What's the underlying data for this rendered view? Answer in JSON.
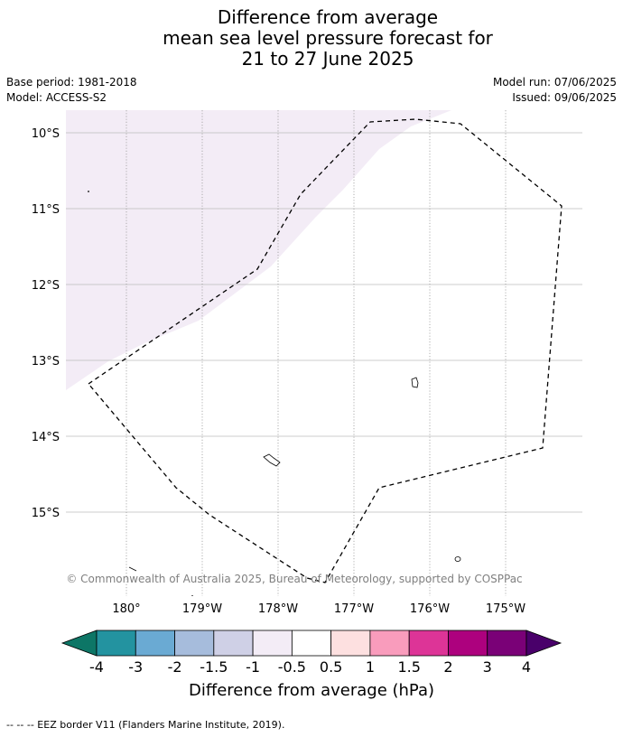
{
  "title": {
    "line1": "Difference from average",
    "line2": "mean sea level pressure forecast for",
    "line3": "21 to 27 June 2025"
  },
  "meta": {
    "base_period": "Base period: 1981-2018",
    "model": "Model: ACCESS-S2",
    "model_run": "Model run: 07/06/2025",
    "issued": "Issued: 09/06/2025"
  },
  "map": {
    "lat_labels": [
      "10°S",
      "11°S",
      "12°S",
      "13°S",
      "14°S",
      "15°S"
    ],
    "lon_labels": [
      "180°",
      "179°W",
      "178°W",
      "177°W",
      "176°W",
      "175°W"
    ],
    "copyright": "© Commonwealth of Australia 2025, Bureau of Meteorology, supported by COSPPac",
    "anomaly_region_class": "-1 to -0.5",
    "anomaly_color": "#f3ecf6",
    "eez_style": "dashed black line"
  },
  "colorbar": {
    "tick_labels": [
      "-4",
      "-3",
      "-2",
      "-1.5",
      "-1",
      "-0.5",
      "0.5",
      "1",
      "1.5",
      "2",
      "3",
      "4"
    ],
    "colors": [
      "#0d7666",
      "#2393a0",
      "#6aaad3",
      "#a6bcdc",
      "#cfd0e6",
      "#f3ecf6",
      "#ffffff",
      "#fde0e0",
      "#f99cbc",
      "#dd3497",
      "#ad017e",
      "#7a0177",
      "#49006a"
    ],
    "label": "Difference from average (hPa)"
  },
  "footer": "--  --  -- EEZ border V11 (Flanders Marine Institute, 2019)."
}
